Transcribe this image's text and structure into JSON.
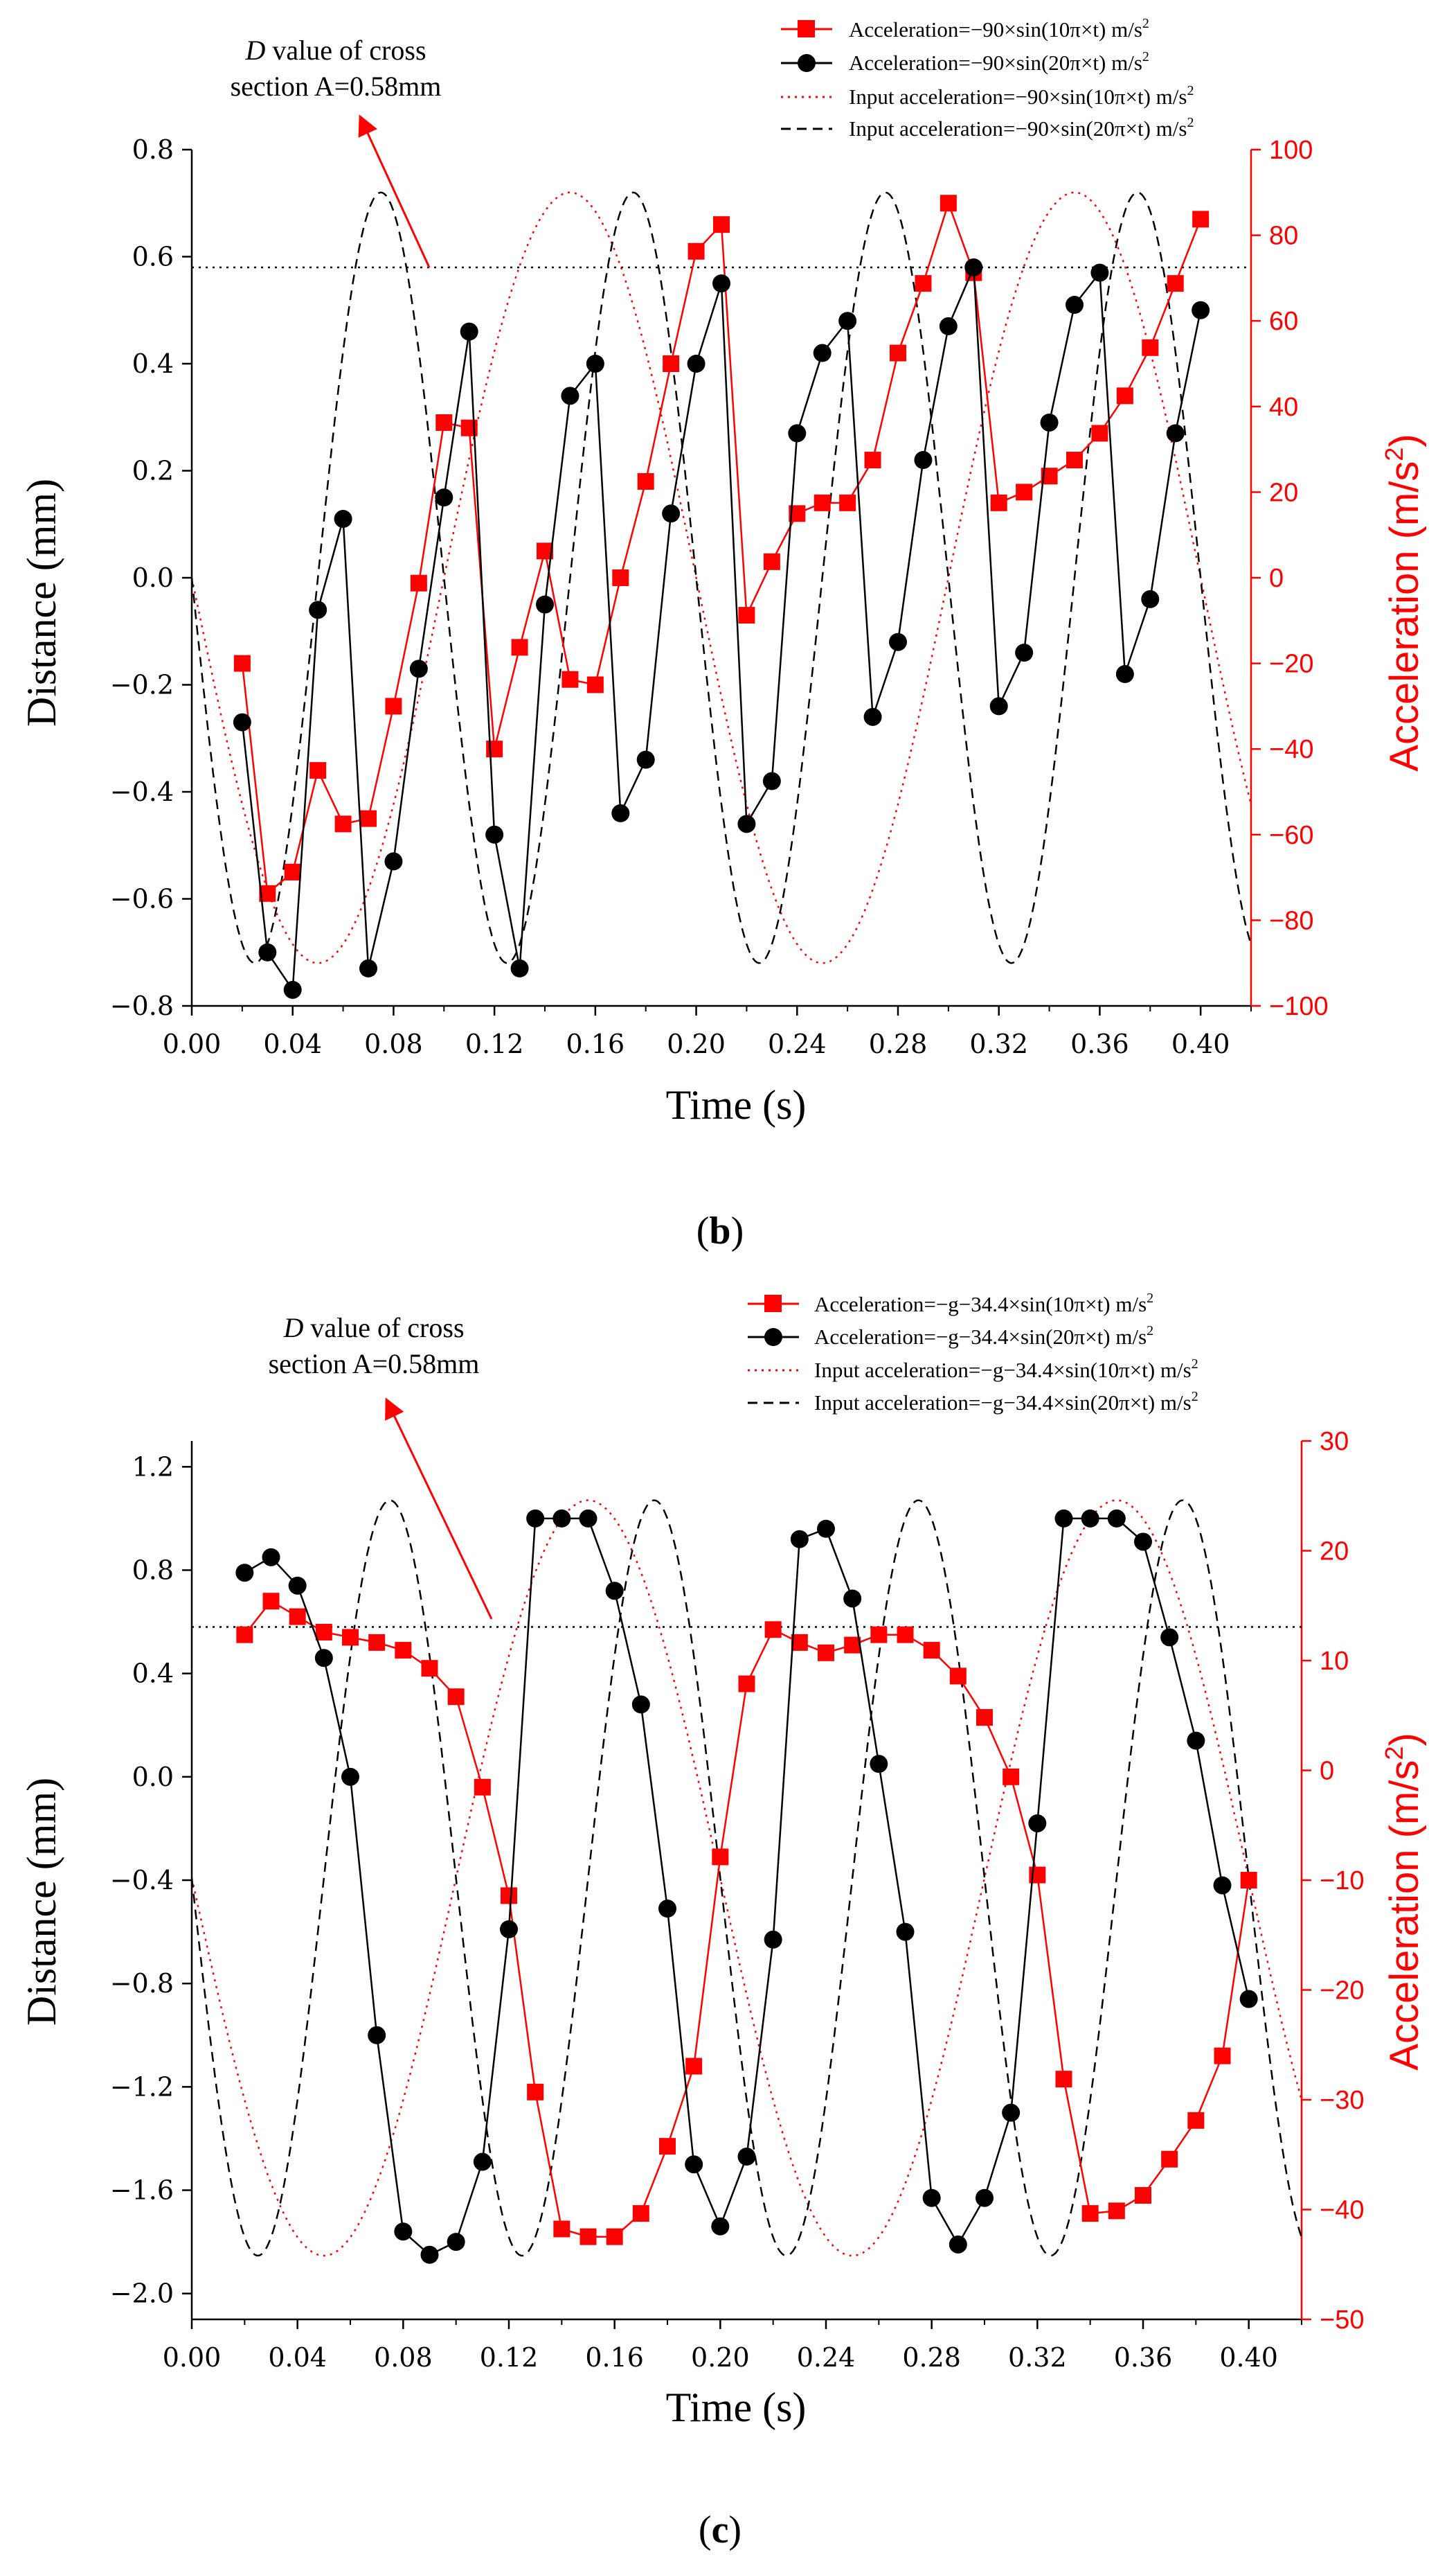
{
  "colors": {
    "red": "#ff0000",
    "black": "#000000"
  },
  "chart_data": [
    {
      "panel_label": "b",
      "type": "line",
      "xlabel": "Time (s)",
      "ylabel": "Distance (mm)",
      "ylabel_right": "Acceleration (m/s²)",
      "xlim": [
        0,
        0.42
      ],
      "xticks": [
        0,
        0.04,
        0.08,
        0.12,
        0.16,
        0.2,
        0.24,
        0.28,
        0.32,
        0.36,
        0.4
      ],
      "xtick_labels": [
        "0.00",
        "0.04",
        "0.08",
        "0.12",
        "0.16",
        "0.20",
        "0.24",
        "0.28",
        "0.32",
        "0.36",
        "0.40"
      ],
      "ylim": [
        -0.8,
        0.8
      ],
      "yticks": [
        -0.8,
        -0.6,
        -0.4,
        -0.2,
        0,
        0.2,
        0.4,
        0.6,
        0.8
      ],
      "ytick_labels": [
        "−0.8",
        "−0.6",
        "−0.4",
        "−0.2",
        "0.0",
        "0.2",
        "0.4",
        "0.6",
        "0.8"
      ],
      "ylim_right": [
        -100,
        100
      ],
      "yticks_right": [
        -100,
        -80,
        -60,
        -40,
        -20,
        0,
        20,
        40,
        60,
        80,
        100
      ],
      "ytick_labels_right": [
        "−100",
        "−80",
        "−60",
        "−40",
        "−20",
        "0",
        "20",
        "40",
        "60",
        "80",
        "100"
      ],
      "annotation": {
        "line1_italic": "D",
        "line1_rest": " value of cross",
        "line2": "section A=0.58mm",
        "value": 0.58
      },
      "legend": [
        {
          "label": "Acceleration=−90×sin(10π×t) m/s",
          "sup": "2"
        },
        {
          "label": "Acceleration=−90×sin(20π×t) m/s",
          "sup": "2"
        },
        {
          "label": "Input acceleration=−90×sin(10π×t) m/s",
          "sup": "2"
        },
        {
          "label": "Input acceleration=−90×sin(20π×t) m/s",
          "sup": "2"
        }
      ],
      "series": [
        {
          "name": "Acceleration 10π (measured, red squares, left axis)",
          "axis": "left",
          "x": [
            0.02,
            0.03,
            0.04,
            0.05,
            0.06,
            0.07,
            0.08,
            0.09,
            0.1,
            0.11,
            0.12,
            0.13,
            0.14,
            0.15,
            0.16,
            0.17,
            0.18,
            0.19,
            0.2,
            0.21,
            0.22,
            0.23,
            0.24,
            0.25,
            0.26,
            0.27,
            0.28,
            0.29,
            0.3,
            0.31,
            0.32,
            0.33,
            0.34,
            0.35,
            0.36,
            0.37,
            0.38,
            0.39,
            0.4
          ],
          "y": [
            -0.16,
            -0.59,
            -0.55,
            -0.36,
            -0.46,
            -0.45,
            -0.24,
            -0.01,
            0.29,
            0.28,
            -0.32,
            -0.13,
            0.05,
            -0.19,
            -0.2,
            0.0,
            0.18,
            0.4,
            0.61,
            0.66,
            -0.07,
            0.03,
            0.12,
            0.14,
            0.14,
            0.22,
            0.42,
            0.55,
            0.7,
            0.57,
            0.14,
            0.16,
            0.19,
            0.22,
            0.27,
            0.34,
            0.43,
            0.55,
            0.67
          ]
        },
        {
          "name": "Acceleration 20π (measured, black circles, left axis)",
          "axis": "left",
          "x": [
            0.02,
            0.03,
            0.04,
            0.05,
            0.06,
            0.07,
            0.08,
            0.09,
            0.1,
            0.11,
            0.12,
            0.13,
            0.14,
            0.15,
            0.16,
            0.17,
            0.18,
            0.19,
            0.2,
            0.21,
            0.22,
            0.23,
            0.24,
            0.25,
            0.26,
            0.27,
            0.28,
            0.29,
            0.3,
            0.31,
            0.32,
            0.33,
            0.34,
            0.35,
            0.36,
            0.37,
            0.38,
            0.39,
            0.4
          ],
          "y": [
            -0.27,
            -0.7,
            -0.77,
            -0.06,
            0.11,
            -0.73,
            -0.53,
            -0.17,
            0.15,
            0.46,
            -0.48,
            -0.73,
            -0.05,
            0.34,
            0.4,
            -0.44,
            -0.34,
            0.12,
            0.4,
            0.55,
            -0.46,
            -0.38,
            0.27,
            0.42,
            0.48,
            -0.26,
            -0.12,
            0.22,
            0.47,
            0.58,
            -0.24,
            -0.14,
            0.29,
            0.51,
            0.57,
            -0.18,
            -0.04,
            0.27,
            0.5
          ]
        },
        {
          "name": "Input acceleration 10π (red dotted, right axis)",
          "axis": "right",
          "amplitude": 90,
          "freq_hz": 5,
          "style": "dotted"
        },
        {
          "name": "Input acceleration 20π (black dashed, right axis)",
          "axis": "right",
          "amplitude": 90,
          "freq_hz": 10,
          "style": "dashed"
        }
      ]
    },
    {
      "panel_label": "c",
      "type": "line",
      "xlabel": "Time (s)",
      "ylabel": "Distance (mm)",
      "ylabel_right": "Acceleration (m/s²)",
      "xlim": [
        0,
        0.42
      ],
      "xticks": [
        0,
        0.04,
        0.08,
        0.12,
        0.16,
        0.2,
        0.24,
        0.28,
        0.32,
        0.36,
        0.4
      ],
      "xtick_labels": [
        "0.00",
        "0.04",
        "0.08",
        "0.12",
        "0.16",
        "0.20",
        "0.24",
        "0.28",
        "0.32",
        "0.36",
        "0.40"
      ],
      "ylim": [
        -2.1,
        1.3
      ],
      "yticks": [
        -2.0,
        -1.6,
        -1.2,
        -0.8,
        -0.4,
        0,
        0.4,
        0.8,
        1.2
      ],
      "ytick_labels": [
        "−2.0",
        "−1.6",
        "−1.2",
        "−0.8",
        "−0.4",
        "0.0",
        "0.4",
        "0.8",
        "1.2"
      ],
      "ylim_right": [
        -50,
        30
      ],
      "yticks_right": [
        -50,
        -40,
        -30,
        -20,
        -10,
        0,
        10,
        20,
        30
      ],
      "ytick_labels_right": [
        "−50",
        "−40",
        "−30",
        "−20",
        "−10",
        "0",
        "10",
        "20",
        "30"
      ],
      "annotation": {
        "line1_italic": "D",
        "line1_rest": " value of cross",
        "line2": "section A=0.58mm",
        "value": 0.58
      },
      "legend": [
        {
          "label": "Acceleration=−g−34.4×sin(10π×t) m/s",
          "sup": "2"
        },
        {
          "label": "Acceleration=−g−34.4×sin(20π×t) m/s",
          "sup": "2"
        },
        {
          "label": "Input acceleration=−g−34.4×sin(10π×t) m/s",
          "sup": "2"
        },
        {
          "label": "Input acceleration=−g−34.4×sin(20π×t) m/s",
          "sup": "2"
        }
      ],
      "series": [
        {
          "name": "Acceleration 10π (measured, red squares, left axis)",
          "axis": "left",
          "x": [
            0.02,
            0.03,
            0.04,
            0.05,
            0.06,
            0.07,
            0.08,
            0.09,
            0.1,
            0.11,
            0.12,
            0.13,
            0.14,
            0.15,
            0.16,
            0.17,
            0.18,
            0.19,
            0.2,
            0.21,
            0.22,
            0.23,
            0.24,
            0.25,
            0.26,
            0.27,
            0.28,
            0.29,
            0.3,
            0.31,
            0.32,
            0.33,
            0.34,
            0.35,
            0.36,
            0.37,
            0.38,
            0.39,
            0.4
          ],
          "y": [
            0.55,
            0.68,
            0.62,
            0.56,
            0.54,
            0.52,
            0.49,
            0.42,
            0.31,
            -0.04,
            -0.46,
            -1.22,
            -1.75,
            -1.78,
            -1.78,
            -1.69,
            -1.43,
            -1.12,
            -0.31,
            0.36,
            0.57,
            0.52,
            0.48,
            0.51,
            0.55,
            0.55,
            0.49,
            0.39,
            0.23,
            0.0,
            -0.38,
            -1.17,
            -1.69,
            -1.68,
            -1.62,
            -1.48,
            -1.33,
            -1.08,
            -0.4
          ]
        },
        {
          "name": "Acceleration 20π (measured, black circles, left axis)",
          "axis": "left",
          "x": [
            0.02,
            0.03,
            0.04,
            0.05,
            0.06,
            0.07,
            0.08,
            0.09,
            0.1,
            0.11,
            0.12,
            0.13,
            0.14,
            0.15,
            0.16,
            0.17,
            0.18,
            0.19,
            0.2,
            0.21,
            0.22,
            0.23,
            0.24,
            0.25,
            0.26,
            0.27,
            0.28,
            0.29,
            0.3,
            0.31,
            0.32,
            0.33,
            0.34,
            0.35,
            0.36,
            0.37,
            0.38,
            0.39,
            0.4
          ],
          "y": [
            0.79,
            0.85,
            0.74,
            0.46,
            0.0,
            -1.0,
            -1.76,
            -1.85,
            -1.8,
            -1.49,
            -0.59,
            1.0,
            1.0,
            1.0,
            0.72,
            0.28,
            -0.51,
            -1.5,
            -1.74,
            -1.47,
            -0.63,
            0.92,
            0.96,
            0.69,
            0.05,
            -0.6,
            -1.63,
            -1.81,
            -1.63,
            -1.3,
            -0.18,
            1.0,
            1.0,
            1.0,
            0.91,
            0.54,
            0.14,
            -0.42,
            -0.86
          ]
        },
        {
          "name": "Input acceleration 10π (red dotted, right axis)",
          "axis": "right",
          "offset": -9.8,
          "amplitude": 34.4,
          "freq_hz": 5,
          "style": "dotted"
        },
        {
          "name": "Input acceleration 20π (black dashed, right axis)",
          "axis": "right",
          "offset": -9.8,
          "amplitude": 34.4,
          "freq_hz": 10,
          "style": "dashed"
        }
      ]
    }
  ]
}
